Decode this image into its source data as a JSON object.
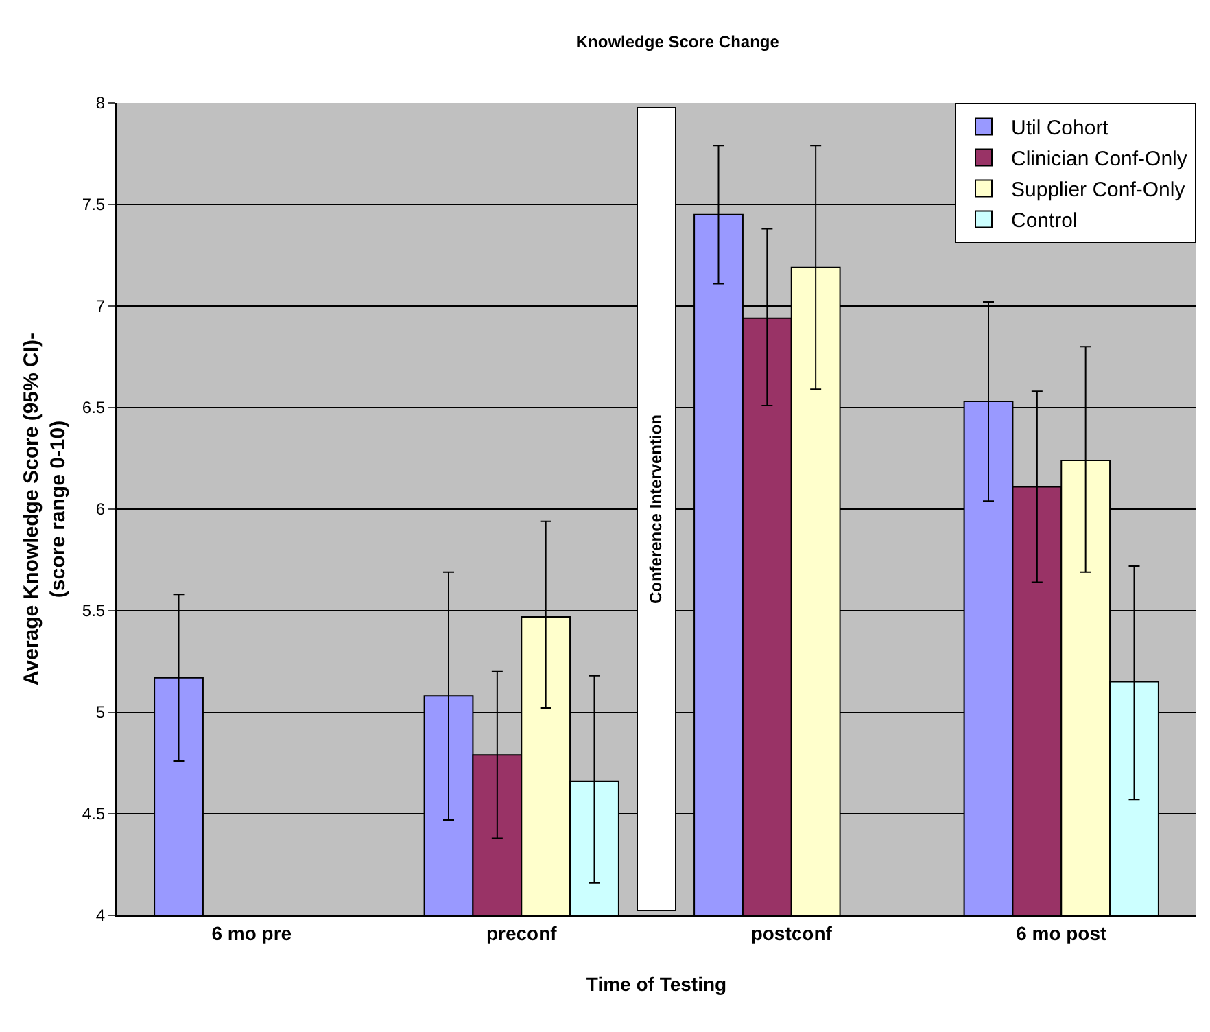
{
  "chart_data": {
    "type": "bar",
    "title": "Knowledge Score Change",
    "xlabel": "Time of Testing",
    "ylabel": "Average Knowledge Score (95% CI)-\n(score range 0-10)",
    "categories": [
      "6 mo pre",
      "preconf",
      "postconf",
      "6 mo post"
    ],
    "series": [
      {
        "name": "Util Cohort",
        "color": "#9999ff",
        "values": [
          5.17,
          5.08,
          7.45,
          6.53
        ],
        "errors": [
          [
            4.76,
            5.58
          ],
          [
            4.47,
            5.69
          ],
          [
            7.11,
            7.79
          ],
          [
            6.04,
            7.02
          ]
        ]
      },
      {
        "name": "Clinician Conf-Only",
        "color": "#993366",
        "values": [
          null,
          4.79,
          6.94,
          6.11
        ],
        "errors": [
          null,
          [
            4.38,
            5.2
          ],
          [
            6.51,
            7.38
          ],
          [
            5.64,
            6.58
          ]
        ]
      },
      {
        "name": "Supplier Conf-Only",
        "color": "#ffffcc",
        "values": [
          null,
          5.47,
          7.19,
          6.24
        ],
        "errors": [
          null,
          [
            5.02,
            5.94
          ],
          [
            6.59,
            7.79
          ],
          [
            5.69,
            6.8
          ]
        ]
      },
      {
        "name": "Control",
        "color": "#ccffff",
        "values": [
          null,
          4.66,
          null,
          5.15
        ],
        "errors": [
          null,
          [
            4.16,
            5.18
          ],
          null,
          [
            4.57,
            5.72
          ]
        ]
      }
    ],
    "annotations": [
      "Conference Intervention"
    ],
    "ylim": [
      4,
      8
    ],
    "yticks": [
      4,
      4.5,
      5,
      5.5,
      6,
      6.5,
      7,
      7.5,
      8
    ],
    "grid": "y",
    "legend": "top right"
  }
}
